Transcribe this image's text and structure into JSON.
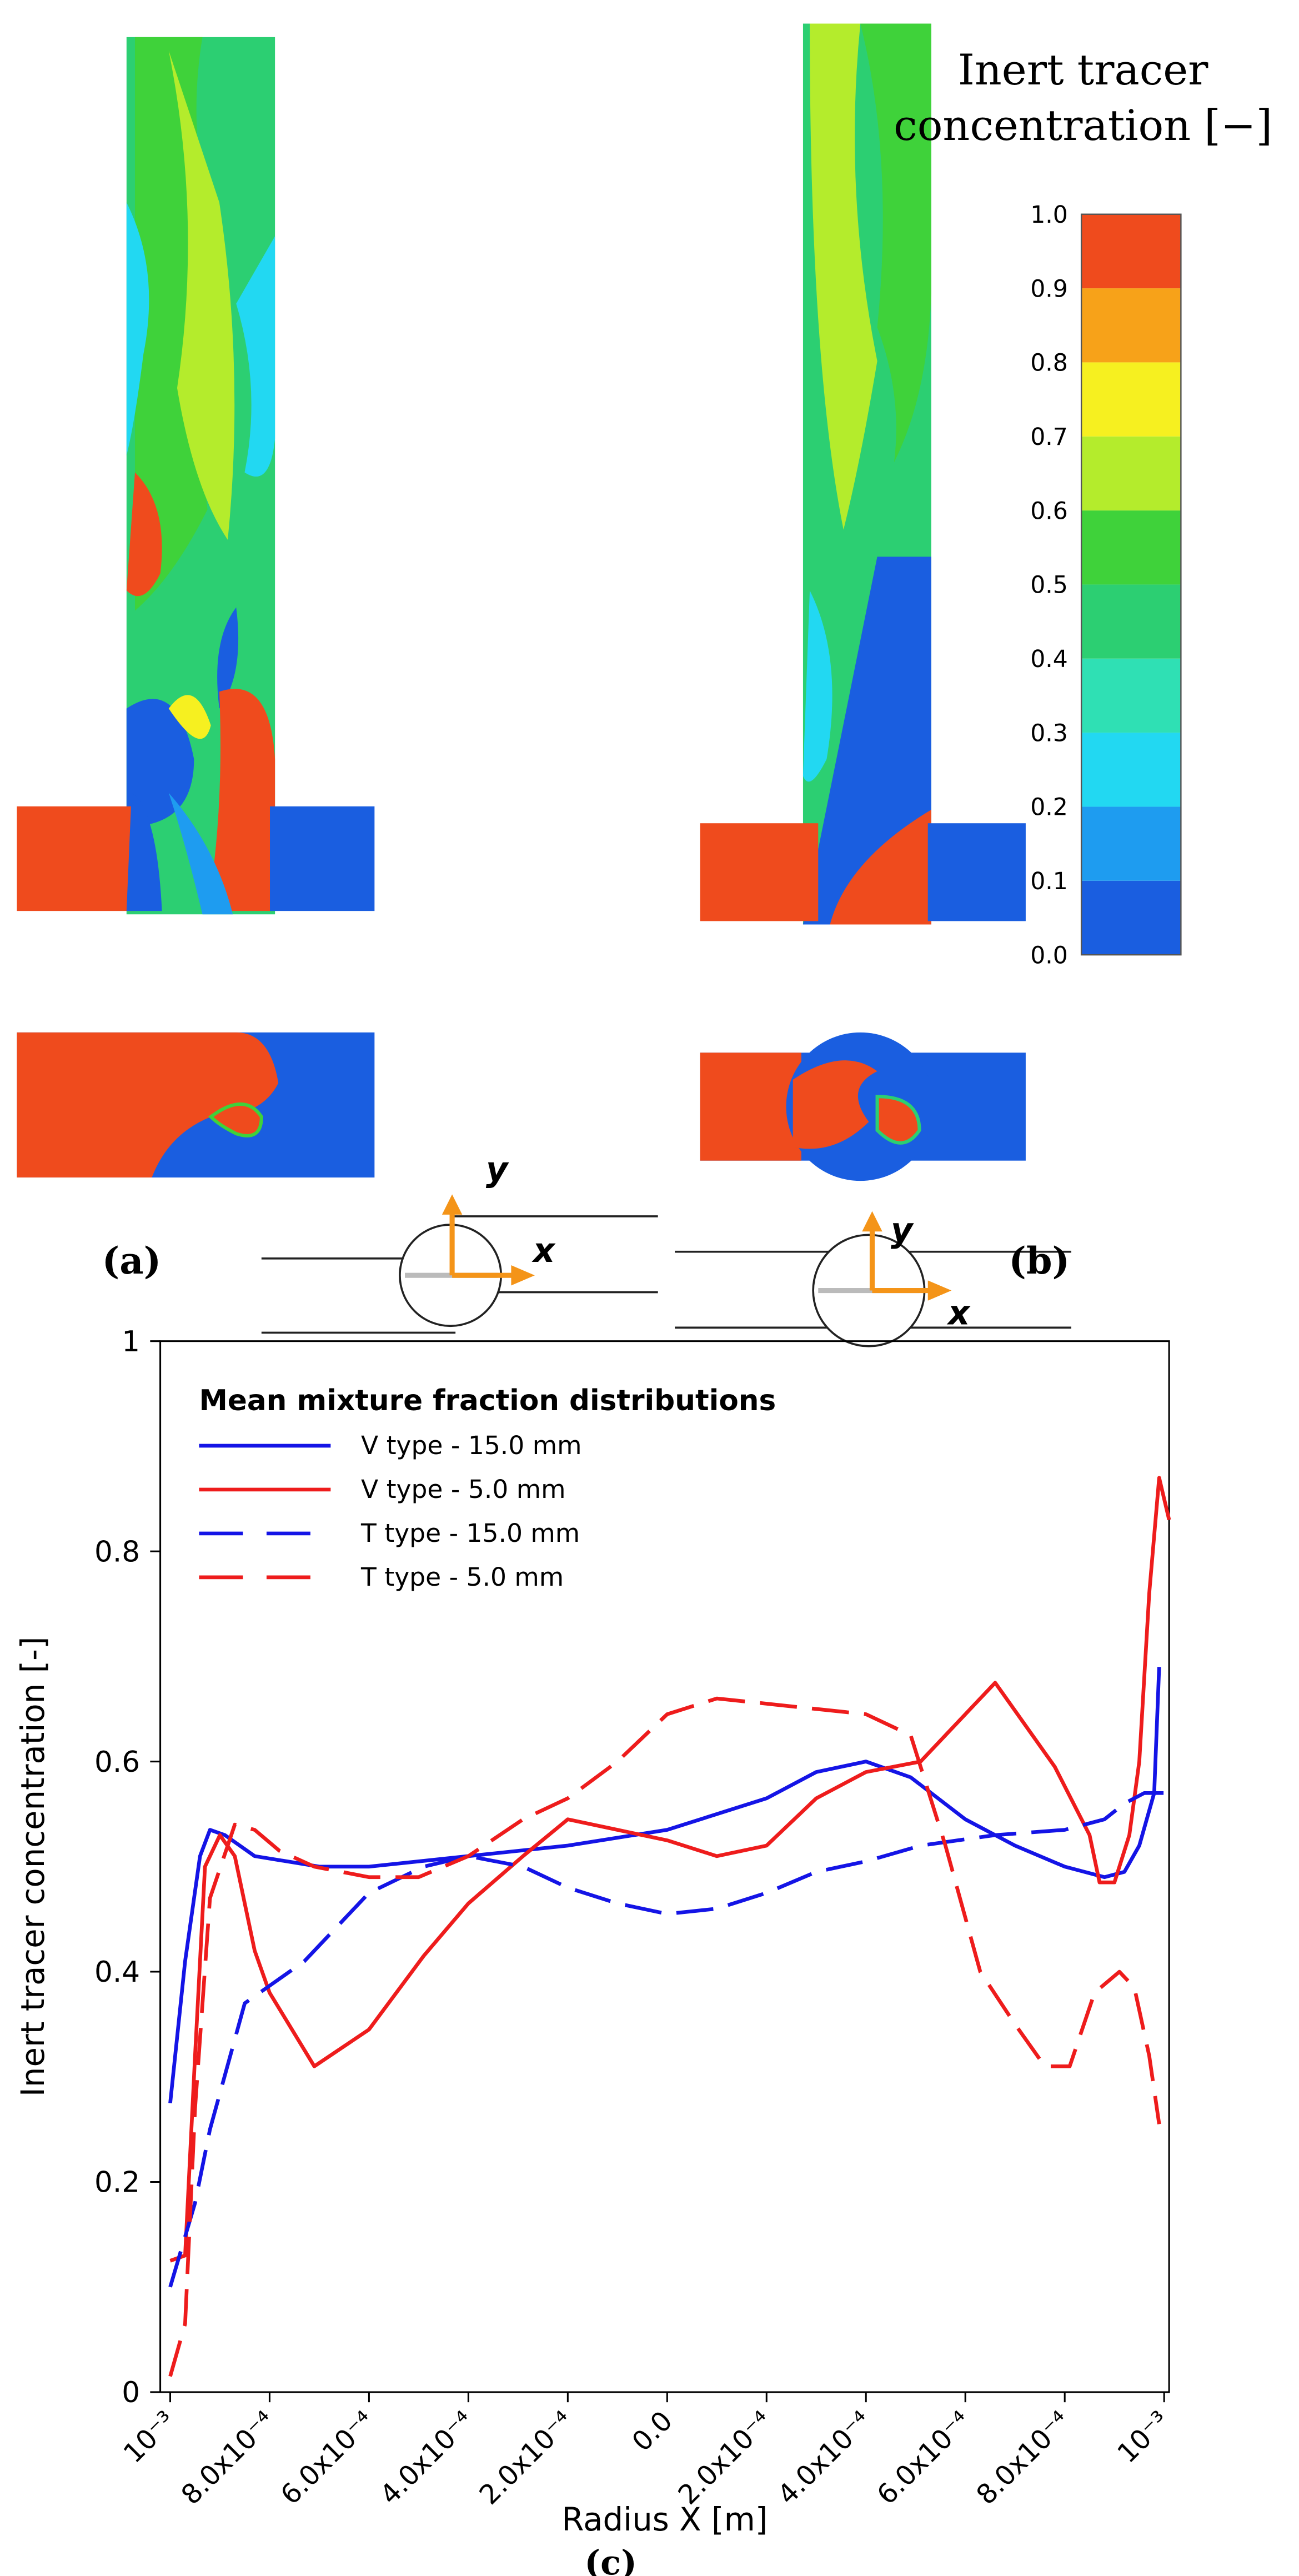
{
  "chart_data": [
    {
      "type": "colorbar",
      "title_lines": [
        "Inert tracer",
        "concentration [−]"
      ],
      "ticks": [
        {
          "value": 0,
          "label": "0.0"
        },
        0.1,
        0.2,
        0.3,
        0.4,
        0.5,
        0.6,
        0.7,
        0.8,
        0.9,
        {
          "value": 1,
          "label": "1.0"
        }
      ],
      "colors": [
        "#1a5ee0",
        "#1e9cf0",
        "#22d8f2",
        "#2fe0b4",
        "#2ccf72",
        "#3fd23a",
        "#b4ec2c",
        "#f6f020",
        "#f7a219",
        "#ef4b1d"
      ],
      "panel_labels": [
        "(a)",
        "(b)"
      ]
    },
    {
      "type": "line",
      "panel_label": "(c)",
      "legend_title": "Mean mixture fraction distributions",
      "x_label": "Radius X [m]",
      "y_label": "Inert tracer concentration [-]",
      "xlim": [
        -0.00102,
        0.00101
      ],
      "ylim": [
        0,
        1
      ],
      "yticks": [
        0,
        0.2,
        0.4,
        0.6,
        0.8,
        1
      ],
      "xticks": [
        {
          "value": -0.001,
          "label": "10⁻³"
        },
        {
          "value": -0.0008,
          "label": "8.0x10⁻⁴"
        },
        {
          "value": -0.0006,
          "label": "6.0x10⁻⁴"
        },
        {
          "value": -0.0004,
          "label": "4.0x10⁻⁴"
        },
        {
          "value": -0.0002,
          "label": "2.0x10⁻⁴"
        },
        {
          "value": 0,
          "label": "0.0"
        },
        {
          "value": 0.0002,
          "label": "2.0x10⁻⁴"
        },
        {
          "value": 0.0004,
          "label": "4.0x10⁻⁴"
        },
        {
          "value": 0.0006,
          "label": "6.0x10⁻⁴"
        },
        {
          "value": 0.0008,
          "label": "8.0x10⁻⁴"
        },
        {
          "value": 0.001,
          "label": "10⁻³"
        }
      ],
      "annotations": [
        "y",
        "x",
        "y",
        "x"
      ],
      "series": [
        {
          "name": "V type - 15.0 mm",
          "color": "#1414e6",
          "dash": false,
          "x": [
            -0.001,
            -0.00097,
            -0.00094,
            -0.00092,
            -0.00089,
            -0.00083,
            -0.0007,
            -0.0006,
            -0.0004,
            -0.0002,
            0,
            0.0002,
            0.0003,
            0.0004,
            0.00049,
            0.0006,
            0.0007,
            0.0008,
            0.00088,
            0.00092,
            0.00095,
            0.00098,
            0.00099
          ],
          "values": [
            0.275,
            0.41,
            0.51,
            0.535,
            0.53,
            0.51,
            0.5,
            0.5,
            0.51,
            0.52,
            0.535,
            0.565,
            0.59,
            0.6,
            0.585,
            0.545,
            0.52,
            0.5,
            0.49,
            0.495,
            0.52,
            0.57,
            0.69
          ]
        },
        {
          "name": "V type - 5.0 mm",
          "color": "#ee1c1c",
          "dash": false,
          "x": [
            -0.001,
            -0.00097,
            -0.00095,
            -0.00093,
            -0.0009,
            -0.00087,
            -0.00083,
            -0.0008,
            -0.00071,
            -0.0006,
            -0.00049,
            -0.0004,
            -0.00029,
            -0.0002,
            -0.0001,
            0,
            0.0001,
            0.0002,
            0.0003,
            0.0004,
            0.00051,
            0.00066,
            0.00078,
            0.00085,
            0.00087,
            0.0009,
            0.00093,
            0.00095,
            0.00097,
            0.00099,
            0.00101
          ],
          "values": [
            0.125,
            0.13,
            0.32,
            0.5,
            0.53,
            0.51,
            0.42,
            0.38,
            0.31,
            0.345,
            0.415,
            0.465,
            0.51,
            0.545,
            0.535,
            0.525,
            0.51,
            0.52,
            0.565,
            0.59,
            0.6,
            0.675,
            0.595,
            0.53,
            0.485,
            0.485,
            0.53,
            0.6,
            0.76,
            0.87,
            0.83
          ]
        },
        {
          "name": "T type - 15.0 mm",
          "color": "#1414e6",
          "dash": true,
          "x": [
            -0.001,
            -0.00095,
            -0.00092,
            -0.00085,
            -0.00073,
            -0.00066,
            -0.0006,
            -0.00049,
            -0.0004,
            -0.00029,
            -0.0002,
            -0.0001,
            0,
            0.0001,
            0.0002,
            0.0003,
            0.0004,
            0.00051,
            0.00066,
            0.0008,
            0.00088,
            0.00092,
            0.00096,
            0.001
          ],
          "values": [
            0.1,
            0.18,
            0.25,
            0.37,
            0.41,
            0.445,
            0.475,
            0.5,
            0.51,
            0.5,
            0.48,
            0.465,
            0.455,
            0.46,
            0.475,
            0.495,
            0.505,
            0.52,
            0.53,
            0.535,
            0.545,
            0.56,
            0.57,
            0.57
          ]
        },
        {
          "name": "T type - 5.0 mm",
          "color": "#ee1c1c",
          "dash": true,
          "x": [
            -0.001,
            -0.00097,
            -0.00095,
            -0.00092,
            -0.00087,
            -0.00083,
            -0.00078,
            -0.00071,
            -0.0006,
            -0.0005,
            -0.0004,
            -0.00029,
            -0.0002,
            -0.0001,
            0,
            0.0001,
            0.0002,
            0.0004,
            0.00049,
            0.00056,
            0.00063,
            0.0007,
            0.00076,
            0.00081,
            0.00086,
            0.00091,
            0.00094,
            0.00097,
            0.00099
          ],
          "values": [
            0.015,
            0.065,
            0.27,
            0.47,
            0.54,
            0.535,
            0.515,
            0.5,
            0.49,
            0.49,
            0.51,
            0.545,
            0.565,
            0.6,
            0.645,
            0.66,
            0.655,
            0.645,
            0.625,
            0.52,
            0.4,
            0.35,
            0.31,
            0.31,
            0.38,
            0.4,
            0.385,
            0.32,
            0.255
          ]
        }
      ]
    }
  ]
}
